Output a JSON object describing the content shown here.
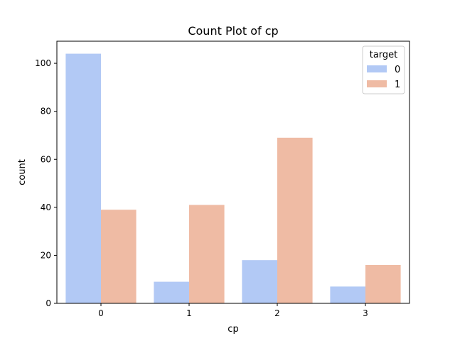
{
  "chart_data": {
    "type": "bar",
    "title": "Count Plot of cp",
    "xlabel": "cp",
    "ylabel": "count",
    "categories": [
      "0",
      "1",
      "2",
      "3"
    ],
    "ylim": [
      0,
      109.2
    ],
    "yticks": [
      0,
      20,
      40,
      60,
      80,
      100
    ],
    "grid": false,
    "legend": {
      "title": "target",
      "placement": "top-right"
    },
    "series": [
      {
        "name": "0",
        "color": "#b2c9f5",
        "values": [
          104,
          9,
          18,
          7
        ]
      },
      {
        "name": "1",
        "color": "#efbba4",
        "values": [
          39,
          41,
          69,
          16
        ]
      }
    ]
  }
}
